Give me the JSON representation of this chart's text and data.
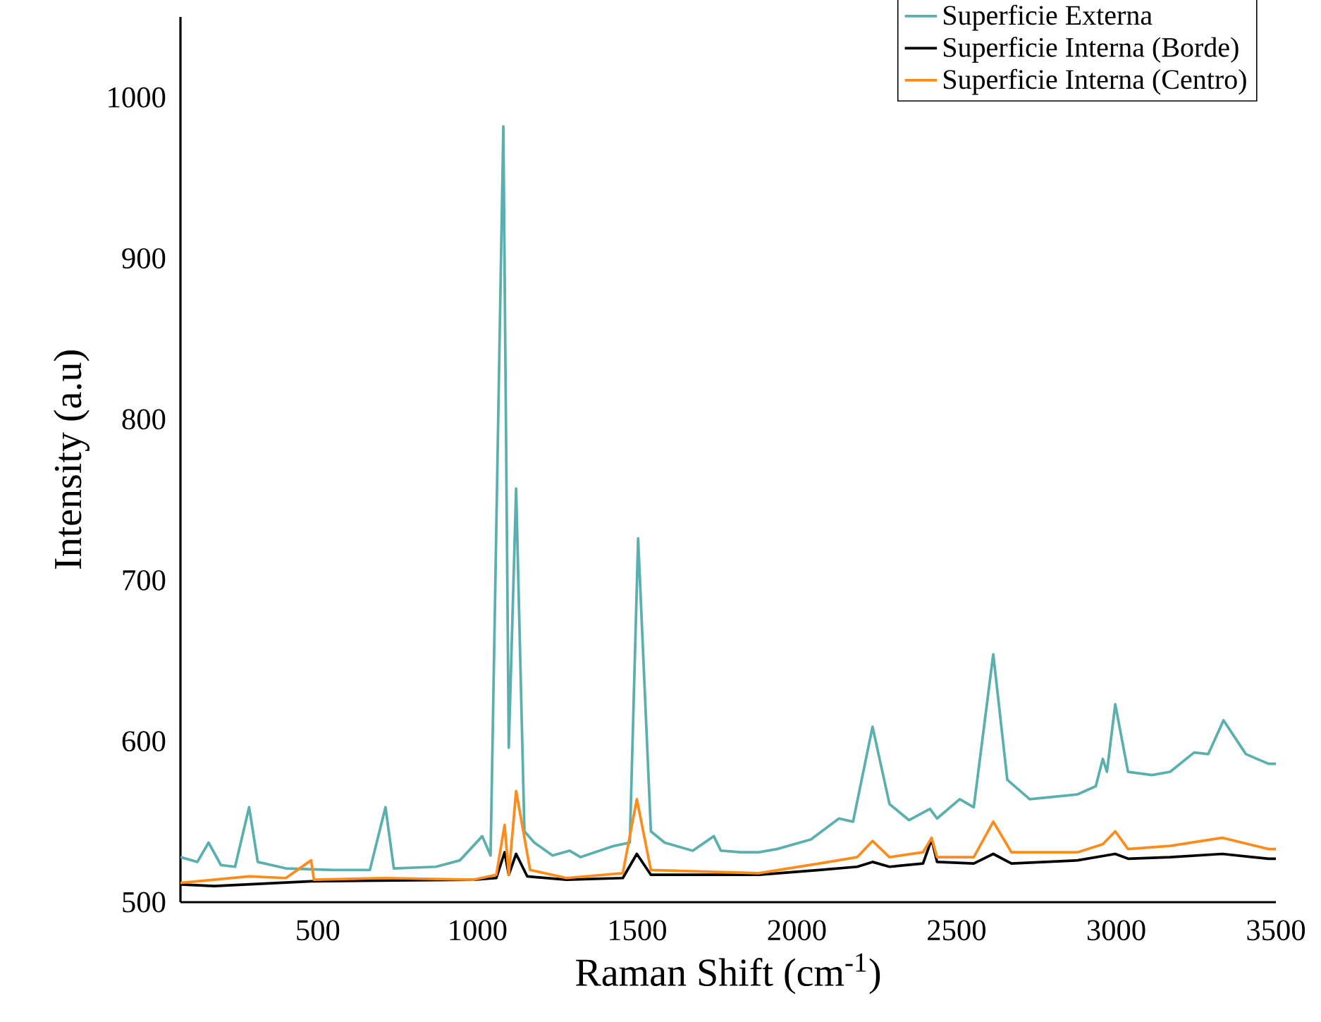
{
  "chart_data": {
    "type": "line",
    "xlabel": "Raman Shift (cm$^{-1}$)",
    "ylabel": "Intensity (a.u)",
    "xlim": [
      70,
      3500
    ],
    "ylim": [
      500,
      1050
    ],
    "xticks": [
      500,
      1000,
      1500,
      2000,
      2500,
      3000,
      3500
    ],
    "yticks": [
      500,
      600,
      700,
      800,
      900,
      1000
    ],
    "legend": "top right",
    "grid": false,
    "marker": "none",
    "line_style": "solid",
    "series": [
      {
        "name": "Superficie Externa",
        "color": "#5aafaf",
        "x": [
          70,
          123,
          158,
          197,
          241,
          285,
          312,
          400,
          549,
          663,
          712,
          738,
          870,
          945,
          1015,
          1041,
          1081,
          1098,
          1121,
          1147,
          1178,
          1235,
          1288,
          1323,
          1428,
          1477,
          1503,
          1543,
          1586,
          1674,
          1740,
          1762,
          1824,
          1881,
          1938,
          2044,
          2132,
          2176,
          2237,
          2290,
          2351,
          2417,
          2439,
          2510,
          2554,
          2615,
          2659,
          2729,
          2879,
          2936,
          2958,
          2971,
          2997,
          3037,
          3112,
          3169,
          3244,
          3288,
          3336,
          3406,
          3477,
          3500
        ],
        "values": [
          528,
          525,
          537,
          523,
          522,
          559,
          525,
          521,
          520,
          520,
          559,
          521,
          522,
          526,
          541,
          529,
          982,
          596,
          757,
          544,
          537,
          529,
          532,
          528,
          535,
          537,
          726,
          544,
          537,
          532,
          541,
          532,
          531,
          531,
          533,
          539,
          552,
          550,
          609,
          561,
          551,
          558,
          552,
          564,
          559,
          654,
          576,
          564,
          567,
          572,
          589,
          581,
          623,
          581,
          579,
          581,
          593,
          592,
          613,
          592,
          586,
          586
        ]
      },
      {
        "name": "Superficie Interna (Borde)",
        "color": "#000000",
        "x": [
          70,
          176,
          479,
          989,
          1059,
          1085,
          1098,
          1121,
          1156,
          1279,
          1455,
          1499,
          1543,
          1881,
          2070,
          2189,
          2237,
          2290,
          2395,
          2422,
          2439,
          2554,
          2615,
          2672,
          2879,
          2997,
          3037,
          3169,
          3332,
          3477,
          3500
        ],
        "values": [
          511,
          510,
          513,
          514,
          515,
          531,
          517,
          530,
          516,
          514,
          515,
          530,
          517,
          517,
          520,
          522,
          525,
          522,
          524,
          539,
          525,
          524,
          530,
          524,
          526,
          530,
          527,
          528,
          530,
          527,
          527
        ]
      },
      {
        "name": "Superficie Interna (Centro)",
        "color": "#ff8c1a",
        "x": [
          70,
          285,
          400,
          479,
          488,
          707,
          989,
          1059,
          1085,
          1098,
          1121,
          1165,
          1279,
          1455,
          1499,
          1543,
          1881,
          2070,
          2189,
          2237,
          2290,
          2395,
          2422,
          2439,
          2554,
          2615,
          2672,
          2879,
          2958,
          2997,
          3037,
          3169,
          3332,
          3477,
          3500
        ],
        "values": [
          512,
          516,
          515,
          526,
          514,
          515,
          514,
          517,
          548,
          517,
          569,
          520,
          515,
          518,
          564,
          520,
          518,
          524,
          528,
          538,
          528,
          531,
          540,
          528,
          528,
          550,
          531,
          531,
          536,
          544,
          533,
          535,
          540,
          533,
          533
        ]
      }
    ]
  }
}
